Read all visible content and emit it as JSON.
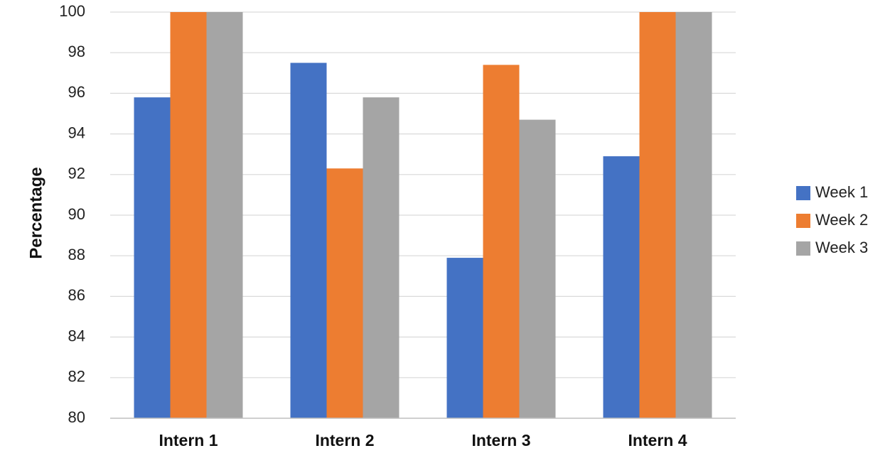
{
  "chart_data": {
    "type": "bar",
    "title": "",
    "xlabel": "",
    "ylabel": "Percentage",
    "categories": [
      "Intern 1",
      "Intern 2",
      "Intern 3",
      "Intern 4"
    ],
    "ylim": [
      80,
      100
    ],
    "yticks": [
      80,
      82,
      84,
      86,
      88,
      90,
      92,
      94,
      96,
      98,
      100
    ],
    "grid": true,
    "legend_position": "right",
    "series": [
      {
        "name": "Week 1",
        "color": "#4472C4",
        "values": [
          95.8,
          97.5,
          87.9,
          92.9
        ]
      },
      {
        "name": "Week 2",
        "color": "#ED7D31",
        "values": [
          100,
          92.3,
          97.4,
          100
        ]
      },
      {
        "name": "Week 3",
        "color": "#A5A5A5",
        "values": [
          100,
          95.8,
          94.7,
          100
        ]
      }
    ]
  }
}
